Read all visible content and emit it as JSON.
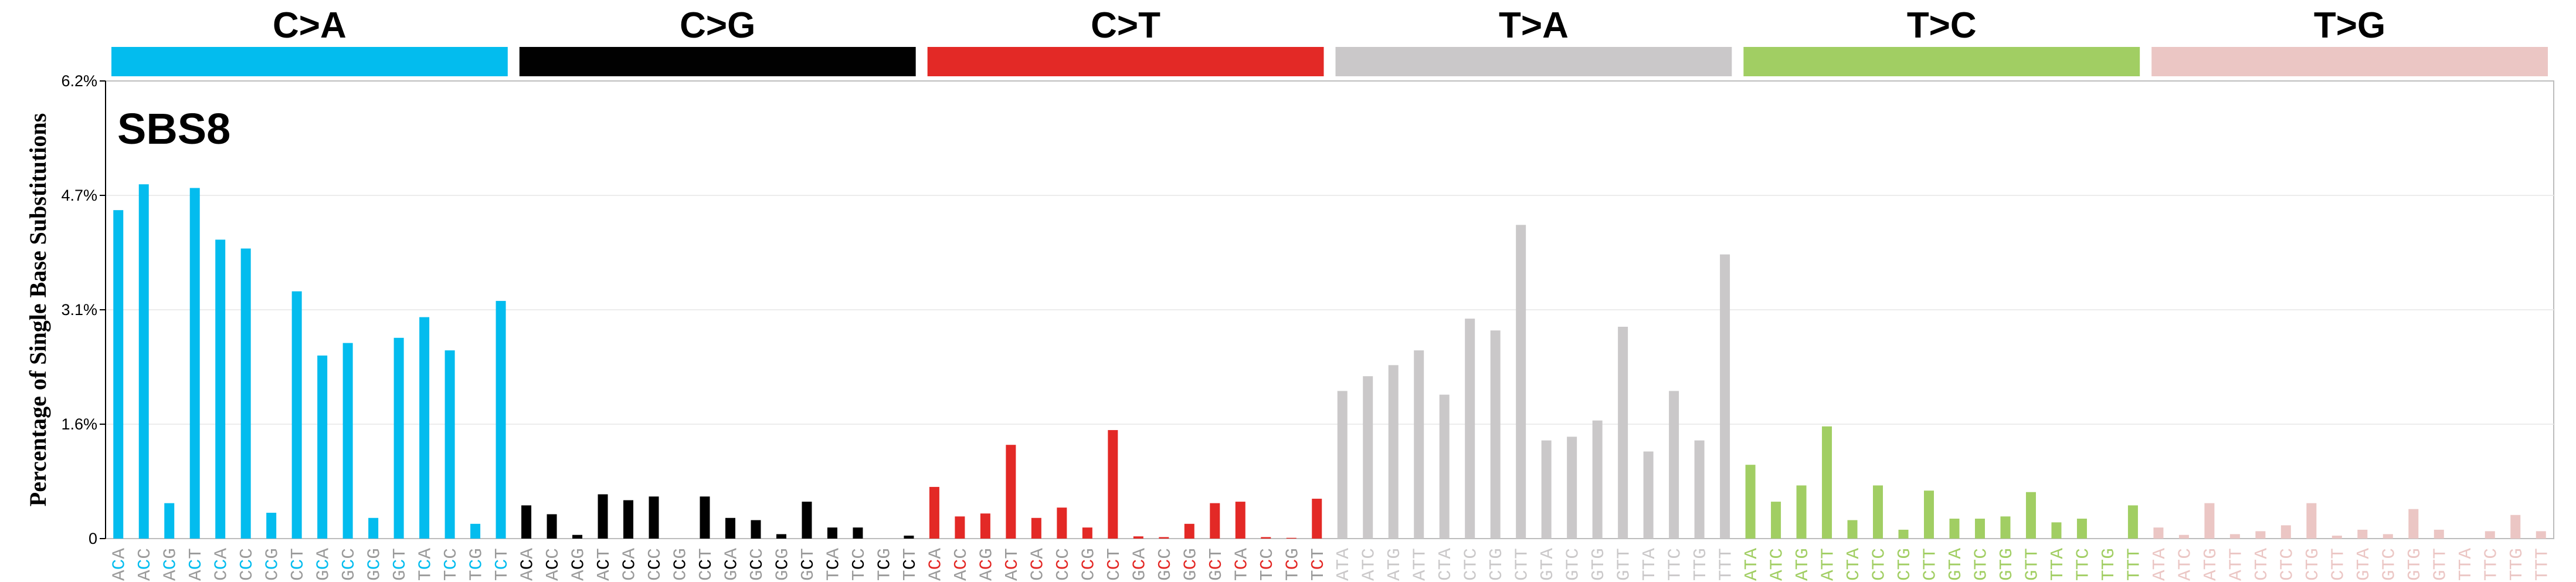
{
  "chart_data": {
    "type": "bar",
    "signature_label": "SBS8",
    "ylabel": "Percentage of Single Base Substitutions",
    "yticks": [
      "0",
      "1.6%",
      "3.1%",
      "4.7%",
      "6.2%"
    ],
    "ylim": [
      0,
      6.2
    ],
    "grid": true,
    "mutation_types": [
      {
        "name": "C>A",
        "color": "#03BCEE",
        "contexts": [
          "ACA",
          "ACC",
          "ACG",
          "ACT",
          "CCA",
          "CCC",
          "CCG",
          "CCT",
          "GCA",
          "GCC",
          "GCG",
          "GCT",
          "TCA",
          "TCC",
          "TCG",
          "TCT"
        ],
        "values": [
          4.45,
          4.8,
          0.48,
          4.75,
          4.05,
          3.93,
          0.35,
          3.35,
          2.48,
          2.65,
          0.28,
          2.72,
          3.0,
          2.55,
          0.2,
          3.22
        ]
      },
      {
        "name": "C>G",
        "color": "#010101",
        "contexts": [
          "ACA",
          "ACC",
          "ACG",
          "ACT",
          "CCA",
          "CCC",
          "CCG",
          "CCT",
          "GCA",
          "GCC",
          "GCG",
          "GCT",
          "TCA",
          "TCC",
          "TCG",
          "TCT"
        ],
        "values": [
          0.45,
          0.33,
          0.05,
          0.6,
          0.52,
          0.57,
          0.0,
          0.57,
          0.28,
          0.25,
          0.06,
          0.5,
          0.15,
          0.15,
          0.0,
          0.04
        ]
      },
      {
        "name": "C>T",
        "color": "#E32926",
        "contexts": [
          "ACA",
          "ACC",
          "ACG",
          "ACT",
          "CCA",
          "CCC",
          "CCG",
          "CCT",
          "GCA",
          "GCC",
          "GCG",
          "GCT",
          "TCA",
          "TCC",
          "TCG",
          "TCT"
        ],
        "values": [
          0.7,
          0.3,
          0.34,
          1.27,
          0.28,
          0.42,
          0.15,
          1.47,
          0.03,
          0.02,
          0.2,
          0.48,
          0.5,
          0.02,
          0.01,
          0.54
        ]
      },
      {
        "name": "T>A",
        "color": "#CAC8C9",
        "contexts": [
          "ATA",
          "ATC",
          "ATG",
          "ATT",
          "CTA",
          "CTC",
          "CTG",
          "CTT",
          "GTA",
          "GTC",
          "GTG",
          "GTT",
          "TTA",
          "TTC",
          "TTG",
          "TTT"
        ],
        "values": [
          2.0,
          2.2,
          2.35,
          2.55,
          1.95,
          2.98,
          2.82,
          4.25,
          1.33,
          1.38,
          1.6,
          2.87,
          1.18,
          2.0,
          1.33,
          3.85
        ]
      },
      {
        "name": "T>C",
        "color": "#A1CE63",
        "contexts": [
          "ATA",
          "ATC",
          "ATG",
          "ATT",
          "CTA",
          "CTC",
          "CTG",
          "CTT",
          "GTA",
          "GTC",
          "GTG",
          "GTT",
          "TTA",
          "TTC",
          "TTG",
          "TTT"
        ],
        "values": [
          1.0,
          0.5,
          0.72,
          1.52,
          0.25,
          0.72,
          0.12,
          0.65,
          0.27,
          0.27,
          0.3,
          0.63,
          0.22,
          0.27,
          0.0,
          0.45
        ]
      },
      {
        "name": "T>G",
        "color": "#EBC6C4",
        "contexts": [
          "ATA",
          "ATC",
          "ATG",
          "ATT",
          "CTA",
          "CTC",
          "CTG",
          "CTT",
          "GTA",
          "GTC",
          "GTG",
          "GTT",
          "TTA",
          "TTC",
          "TTG",
          "TTT"
        ],
        "values": [
          0.15,
          0.05,
          0.48,
          0.06,
          0.1,
          0.18,
          0.48,
          0.04,
          0.12,
          0.06,
          0.4,
          0.12,
          0.0,
          0.1,
          0.32,
          0.1
        ]
      }
    ]
  }
}
